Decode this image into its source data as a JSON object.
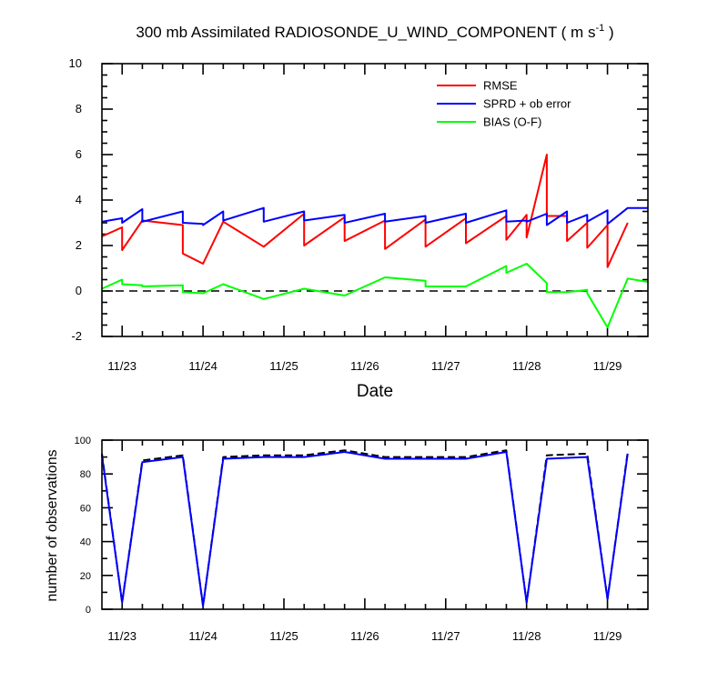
{
  "colors": {
    "rmse": "#ff0000",
    "sprd": "#0000ff",
    "bias": "#00ff00",
    "obs_used": "#0000ff",
    "obs_total": "#000000"
  },
  "chart_data": [
    {
      "type": "line",
      "title_main": "300 mb Assimilated RADIOSONDE_U_WIND_COMPONENT ( m s",
      "title_sup": "-1",
      "title_end": " )",
      "xlabel": "Date",
      "ylabel": "",
      "xlim": [
        0,
        6.75
      ],
      "ylim": [
        -2,
        10
      ],
      "y_ticks": [
        -2,
        0,
        2,
        4,
        6,
        8,
        10
      ],
      "x_ticks": [
        0.25,
        1.25,
        2.25,
        3.25,
        4.25,
        5.25,
        6.25
      ],
      "x_tick_labels": [
        "11/23",
        "11/24",
        "11/25",
        "11/26",
        "11/27",
        "11/28",
        "11/29"
      ],
      "zero_line": "dashed",
      "legend_position": "top-right",
      "series": [
        {
          "name": "RMSE",
          "color": "#ff0000",
          "x": [
            0,
            0.25,
            0.25,
            0.5,
            1.0,
            1.0,
            1.25,
            1.25,
            1.5,
            2.0,
            2.0,
            2.5,
            2.5,
            3.0,
            3.0,
            3.5,
            3.5,
            4.0,
            4.0,
            4.5,
            4.5,
            5.0,
            5.0,
            5.25,
            5.25,
            5.5,
            5.5,
            5.75,
            5.75,
            6.0,
            6.0,
            6.25,
            6.25,
            6.5
          ],
          "y": [
            2.4,
            2.8,
            1.8,
            3.1,
            2.9,
            1.65,
            1.2,
            1.2,
            3.05,
            1.95,
            1.95,
            3.4,
            2.0,
            3.25,
            2.2,
            3.1,
            1.85,
            3.15,
            1.95,
            3.2,
            2.1,
            3.3,
            2.25,
            3.35,
            2.35,
            6.0,
            3.3,
            3.3,
            2.2,
            3.0,
            1.9,
            2.9,
            1.05,
            3.0
          ]
        },
        {
          "name": "SPRD + ob error",
          "color": "#0000ff",
          "x": [
            0,
            0.25,
            0.25,
            0.5,
            0.5,
            1.0,
            1.0,
            1.25,
            1.25,
            1.5,
            1.5,
            2.0,
            2.0,
            2.5,
            2.5,
            3.0,
            3.0,
            3.5,
            3.5,
            4.0,
            4.0,
            4.5,
            4.5,
            5.0,
            5.0,
            5.25,
            5.25,
            5.5,
            5.5,
            5.75,
            5.75,
            6.0,
            6.0,
            6.25,
            6.25,
            6.5,
            6.5,
            6.75
          ],
          "y": [
            3.05,
            3.2,
            3.0,
            3.6,
            3.05,
            3.5,
            3.0,
            2.95,
            2.9,
            3.5,
            3.1,
            3.65,
            3.05,
            3.5,
            3.1,
            3.35,
            3.0,
            3.4,
            3.05,
            3.3,
            3.0,
            3.4,
            3.0,
            3.55,
            3.05,
            3.1,
            3.05,
            3.4,
            2.9,
            3.5,
            3.0,
            3.35,
            3.05,
            3.55,
            2.95,
            3.65,
            3.65,
            3.65
          ]
        },
        {
          "name": "BIAS (O-F)",
          "color": "#00ff00",
          "x": [
            0,
            0.25,
            0.25,
            0.5,
            0.5,
            1.0,
            1.0,
            1.25,
            1.5,
            2.0,
            2.5,
            3.0,
            3.5,
            4.0,
            4.0,
            4.5,
            5.0,
            5.0,
            5.25,
            5.5,
            5.5,
            5.75,
            6.0,
            6.0,
            6.25,
            6.5,
            6.75
          ],
          "y": [
            0.1,
            0.5,
            0.3,
            0.25,
            0.2,
            0.25,
            -0.05,
            -0.1,
            0.3,
            -0.35,
            0.1,
            -0.2,
            0.6,
            0.45,
            0.2,
            0.2,
            1.1,
            0.8,
            1.2,
            0.35,
            -0.05,
            -0.05,
            0.05,
            -0.1,
            -1.6,
            0.55,
            0.4
          ]
        }
      ]
    },
    {
      "type": "line",
      "xlabel": "",
      "ylabel": "number of observations",
      "xlim": [
        0,
        6.75
      ],
      "ylim": [
        0,
        100
      ],
      "y_ticks": [
        0,
        20,
        40,
        60,
        80,
        100
      ],
      "x_ticks": [
        0.25,
        1.25,
        2.25,
        3.25,
        4.25,
        5.25,
        6.25
      ],
      "x_tick_labels": [
        "11/23",
        "11/24",
        "11/25",
        "11/26",
        "11/27",
        "11/28",
        "11/29"
      ],
      "series": [
        {
          "style": "dashed",
          "color": "#000000",
          "x": [
            0,
            0.25,
            0.5,
            1.0,
            1.25,
            1.5,
            2.0,
            2.5,
            3.0,
            3.5,
            4.0,
            4.5,
            5.0,
            5.25,
            5.5,
            6.0,
            6.25,
            6.5
          ],
          "y": [
            92,
            4,
            88,
            91,
            2,
            90,
            91,
            91,
            94,
            90,
            90,
            90,
            94,
            4,
            91,
            92,
            6,
            93
          ]
        },
        {
          "style": "solid",
          "color": "#0000ff",
          "x": [
            0,
            0.25,
            0.5,
            1.0,
            1.25,
            1.5,
            2.0,
            2.5,
            3.0,
            3.5,
            4.0,
            4.5,
            5.0,
            5.25,
            5.5,
            6.0,
            6.25,
            6.5
          ],
          "y": [
            91,
            4,
            87,
            90,
            2,
            89,
            90,
            90,
            93,
            89,
            89,
            89,
            93,
            4,
            89,
            90,
            6,
            92
          ]
        }
      ]
    }
  ]
}
